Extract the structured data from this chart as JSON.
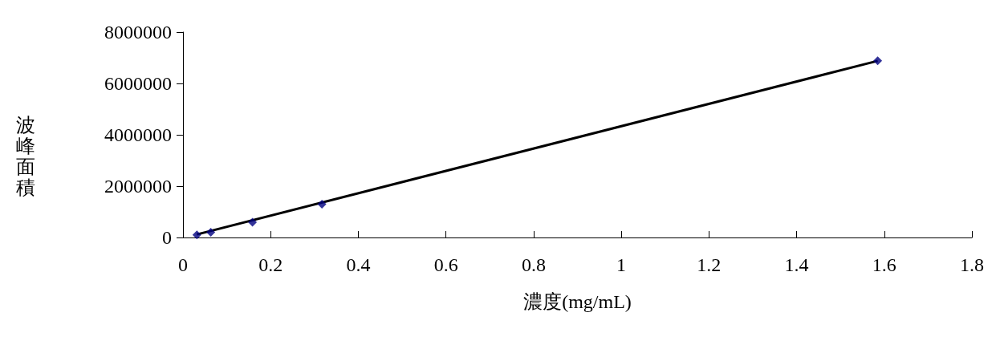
{
  "chart_data": {
    "type": "scatter",
    "xlabel": "濃度(mg/mL)",
    "ylabel": "波峰面積",
    "xlim": [
      0,
      1.8
    ],
    "xticks": [
      0,
      0.2,
      0.4,
      0.6,
      0.8,
      1,
      1.2,
      1.4,
      1.6,
      1.8
    ],
    "ylim": [
      0,
      8000000
    ],
    "yticks": [
      0,
      2000000,
      4000000,
      6000000,
      8000000
    ],
    "grid": false,
    "marker": "diamond",
    "series": [
      {
        "color": "#000080",
        "x": [
          0.0317,
          0.0634,
          0.1585,
          0.317,
          1.585
        ],
        "values": [
          100000,
          200000,
          590000,
          1300000,
          6880000
        ]
      },
      {
        "type": "line",
        "color": "#000000",
        "marker": "none",
        "line_style": "solid",
        "x": [
          0.0317,
          1.585
        ],
        "values": [
          120000,
          6880000
        ]
      }
    ]
  }
}
